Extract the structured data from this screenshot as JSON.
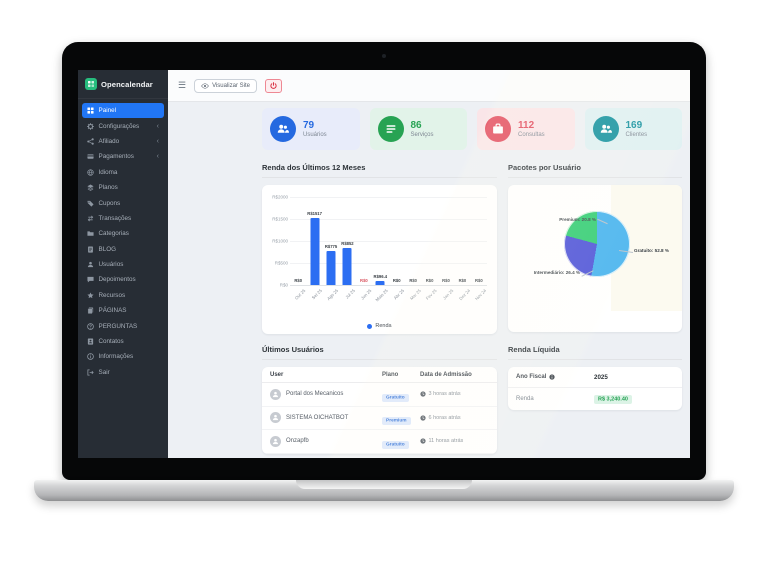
{
  "brand": {
    "name": "Opencalendar"
  },
  "icons": {
    "hamburger": "☰",
    "chevron_left": "‹"
  },
  "topbar": {
    "view_site_label": "Visualizar Site"
  },
  "sidebar": {
    "items": [
      {
        "label": "Painel",
        "icon": "dashboard",
        "active": true
      },
      {
        "label": "Configurações",
        "icon": "gear",
        "chevron": true
      },
      {
        "label": "Afiliado",
        "icon": "share",
        "chevron": true
      },
      {
        "label": "Pagamentos",
        "icon": "card",
        "chevron": true
      },
      {
        "label": "Idioma",
        "icon": "globe"
      },
      {
        "label": "Planos",
        "icon": "layers"
      },
      {
        "label": "Cupons",
        "icon": "tag"
      },
      {
        "label": "Transações",
        "icon": "swap"
      },
      {
        "label": "Categorias",
        "icon": "folder"
      },
      {
        "label": "BLOG",
        "icon": "doc"
      },
      {
        "label": "Usuários",
        "icon": "user"
      },
      {
        "label": "Depoimentos",
        "icon": "chat"
      },
      {
        "label": "Recursos",
        "icon": "star"
      },
      {
        "label": "PÁGINAS",
        "icon": "pages"
      },
      {
        "label": "PERGUNTAS",
        "icon": "question"
      },
      {
        "label": "Contatos",
        "icon": "contact"
      },
      {
        "label": "Informações",
        "icon": "info"
      },
      {
        "label": "Sair",
        "icon": "logout"
      }
    ]
  },
  "stats": [
    {
      "value": "79",
      "label": "Usuários",
      "accent": "#2569e0",
      "bg": "#e8ecfa",
      "icon": "people"
    },
    {
      "value": "86",
      "label": "Serviços",
      "accent": "#27a353",
      "bg": "#e2f3e9",
      "icon": "list"
    },
    {
      "value": "112",
      "label": "Consultas",
      "accent": "#e2495c",
      "bg": "#fae5e8",
      "icon": "box"
    },
    {
      "value": "169",
      "label": "Clientes",
      "accent": "#12919f",
      "bg": "#def0f3",
      "icon": "people"
    }
  ],
  "sections": {
    "revenue_title": "Renda dos Últimos 12 Meses",
    "packages_title": "Pacotes por Usuário",
    "latest_users_title": "Últimos Usuários",
    "net_income_title": "Renda Líquida"
  },
  "chart_data": [
    {
      "type": "bar",
      "title": "Renda dos Últimos 12 Meses",
      "categories": [
        "Out 25",
        "Set 25",
        "Ago 25",
        "Jul 25",
        "Jun 25",
        "Maio 25",
        "Abr 25",
        "Mar 25",
        "Fev 25",
        "Jan 25",
        "Dez 24",
        "Nov 24"
      ],
      "series": [
        {
          "name": "Renda",
          "values": [
            0,
            1517,
            775,
            852,
            0,
            96.4,
            0,
            0,
            0,
            0,
            0,
            0
          ]
        }
      ],
      "value_labels": [
        "R$0",
        "R$1517",
        "R$775",
        "R$852",
        "R$0",
        "R$96.4",
        "R$0",
        "R$0",
        "R$0",
        "R$0",
        "R$0",
        "R$0"
      ],
      "value_label_colors": [
        "#3a4046",
        "#3a4046",
        "#3a4046",
        "#3a4046",
        "#d95560",
        "#3a4046",
        "#3a4046",
        "#3a4046",
        "#3a4046",
        "#3a4046",
        "#3a4046",
        "#3a4046"
      ],
      "y_ticks": [
        "R$2000",
        "R$1500",
        "R$1000",
        "R$500",
        "R$0"
      ],
      "ylim": [
        0,
        2000
      ],
      "xlabel": "",
      "ylabel": "",
      "bar_color": "#2c6ef2",
      "grid": true,
      "legend": [
        "Renda"
      ],
      "legend_position": "bottom"
    },
    {
      "type": "pie",
      "title": "Pacotes por Usuário",
      "slices": [
        {
          "label": "Gratuito",
          "value": 52.8,
          "color": "#41b1ef",
          "display": "Gratuito: 52.8 %"
        },
        {
          "label": "Intermediário",
          "value": 26.4,
          "color": "#4b50d8",
          "display": "Intermediário: 26.4 %"
        },
        {
          "label": "Premium",
          "value": 20.8,
          "color": "#2ecc71",
          "display": "Premium: 20.8 %"
        }
      ],
      "start_angle_deg": 0,
      "direction": "clockwise"
    }
  ],
  "latest_users": {
    "columns": [
      "User",
      "Plano",
      "Data de Admissão"
    ],
    "rows": [
      {
        "user": "Portal dos Mecanicos",
        "plan": "Gratuito",
        "admitted": "3 horas atrás"
      },
      {
        "user": "SISTEMA OICHATBOT",
        "plan": "Premium",
        "admitted": "6 horas atrás"
      },
      {
        "user": "Onzapfb",
        "plan": "Gratuito",
        "admitted": "11 horas atrás"
      }
    ]
  },
  "net_income": {
    "fiscal_year_label": "Ano Fiscal",
    "fiscal_year": "2025",
    "income_label": "Renda",
    "income_value": "R$ 3,240.40"
  }
}
